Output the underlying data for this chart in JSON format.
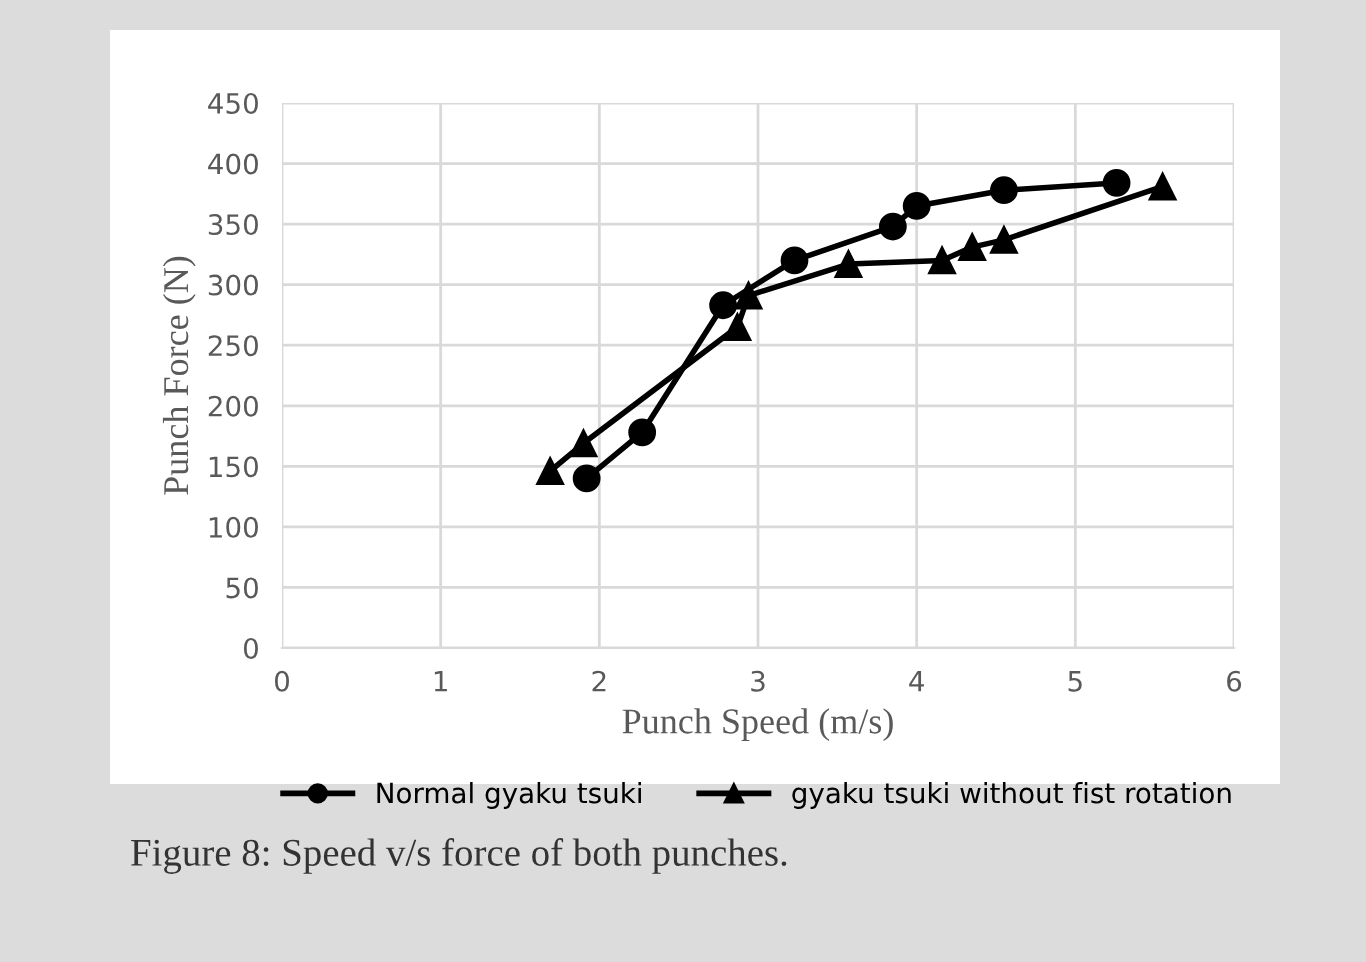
{
  "chart_data": {
    "type": "line",
    "xlabel": "Punch Speed (m/s)",
    "ylabel": "Punch Force (N)",
    "series": [
      {
        "name": "Normal gyaku tsuki",
        "color": "#000000",
        "marker": "circle",
        "x": [
          1.92,
          2.27,
          2.78,
          3.23,
          3.85,
          4.0,
          4.55,
          5.26
        ],
        "values": [
          140,
          178,
          283,
          320,
          348,
          365,
          378,
          384
        ]
      },
      {
        "name": "gyaku tsuki without fist rotation",
        "color": "#000000",
        "marker": "triangle",
        "x": [
          1.69,
          1.9,
          2.87,
          2.94,
          3.57,
          4.16,
          4.35,
          4.55,
          5.55
        ],
        "values": [
          146,
          169,
          265,
          291,
          317,
          320,
          331,
          337,
          381
        ]
      }
    ],
    "xlim": [
      0,
      6
    ],
    "xticks": [
      0,
      1,
      2,
      3,
      4,
      5,
      6
    ],
    "ylim": [
      0,
      450
    ],
    "yticks": [
      0,
      50,
      100,
      150,
      200,
      250,
      300,
      350,
      400,
      450
    ],
    "grid": true,
    "legend": "bottom",
    "line_style": "solid",
    "annotations": [
      "Figure 8: Speed v/s force of both punches."
    ]
  }
}
